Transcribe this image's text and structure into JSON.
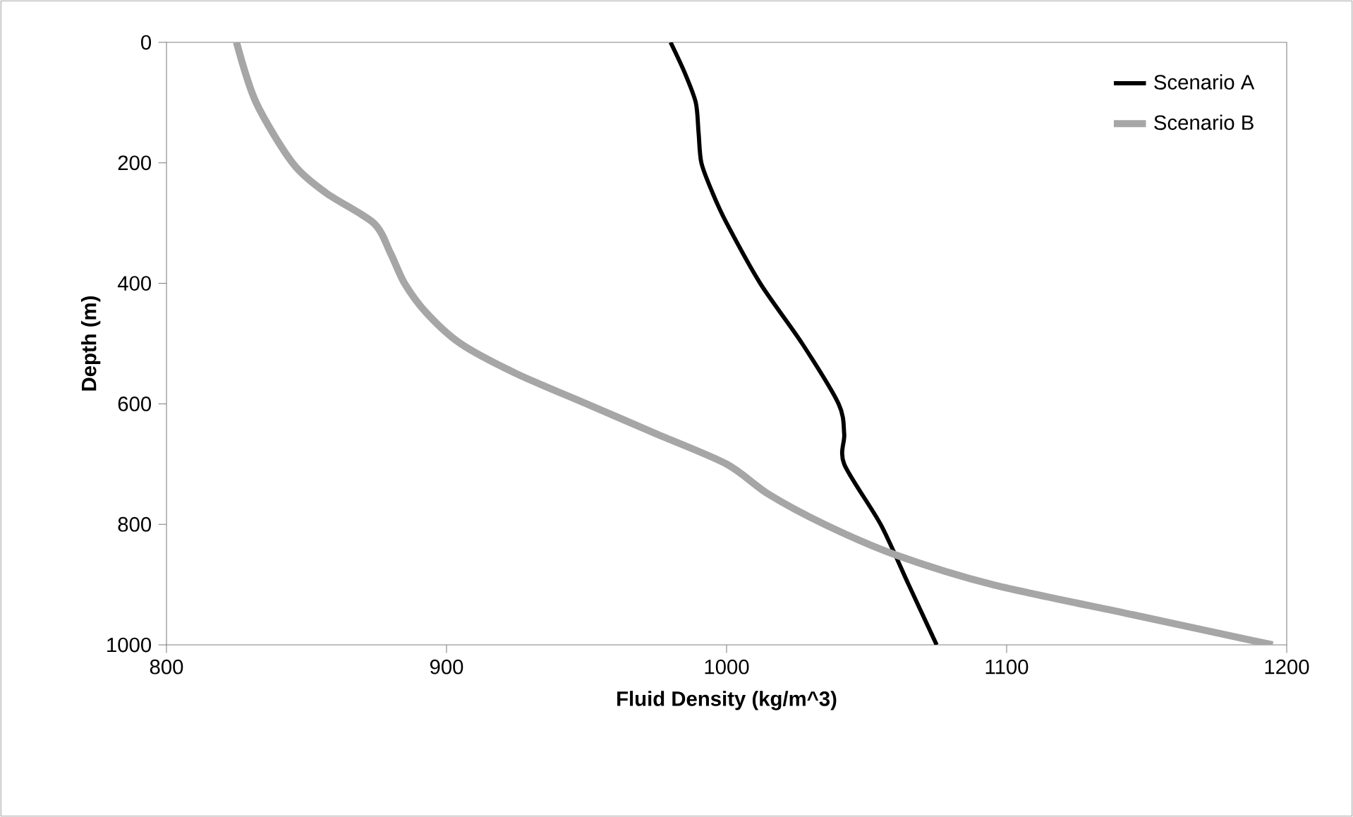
{
  "chart_data": {
    "type": "line",
    "xlabel": "Fluid Density (kg/m^3)",
    "ylabel": "Depth (m)",
    "xlim": [
      800,
      1200
    ],
    "xticks": [
      800,
      900,
      1000,
      1100,
      1200
    ],
    "ylim": [
      1000,
      0
    ],
    "yticks": [
      0,
      200,
      400,
      600,
      800,
      1000
    ],
    "legend": "top right",
    "grid": false,
    "marker": "none",
    "line_style": "solid",
    "series": [
      {
        "name": "Scenario A",
        "color": "#000000",
        "x": [
          980,
          985,
          989,
          990,
          991,
          995,
          1000,
          1012,
          1027,
          1040,
          1042,
          1042,
          1055,
          1065,
          1075
        ],
        "values": [
          0,
          50,
          100,
          150,
          200,
          250,
          300,
          400,
          500,
          600,
          650,
          700,
          800,
          900,
          1000
        ]
      },
      {
        "name": "Scenario B",
        "color": "#a6a6a6",
        "x": [
          825,
          832,
          845,
          857,
          874,
          880,
          885,
          893,
          905,
          925,
          950,
          975,
          1000,
          1015,
          1035,
          1060,
          1095,
          1145,
          1195
        ],
        "values": [
          0,
          100,
          200,
          250,
          300,
          350,
          400,
          450,
          500,
          550,
          600,
          650,
          700,
          750,
          800,
          850,
          900,
          950,
          1000
        ]
      }
    ]
  }
}
